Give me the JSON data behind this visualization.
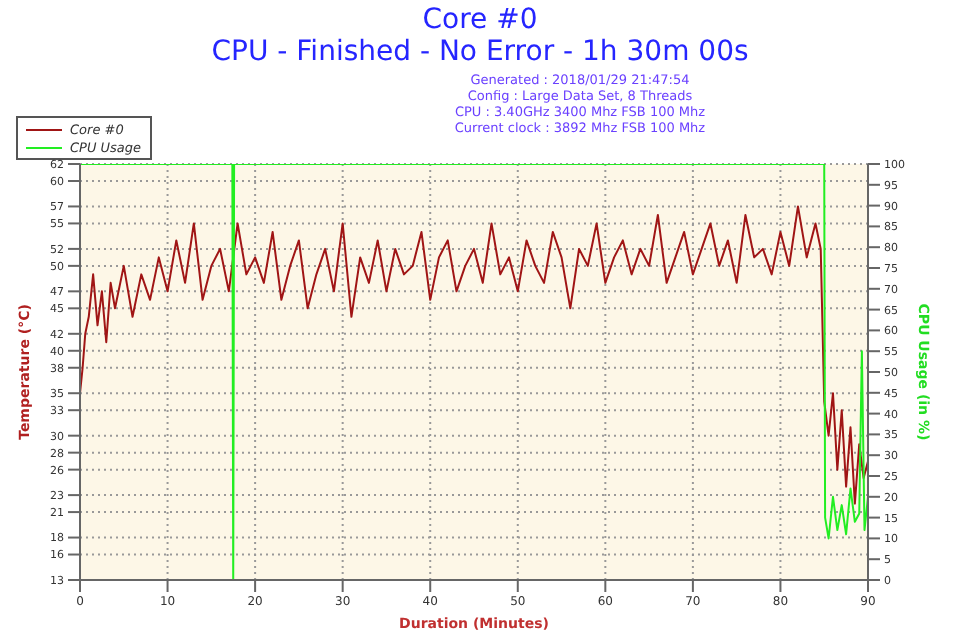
{
  "chart_data": {
    "type": "line",
    "title": "Core #0\nCPU - Finished - No Error - 1h 30m 00s",
    "subtitle": "Generated : 2018/01/29 21:47:54\nConfig : Large Data Set, 8 Threads\nCPU : 3.40GHz 3400 Mhz FSB 100 Mhz\nCurrent clock : 3892 Mhz FSB 100 Mhz",
    "xlabel": "Duration (Minutes)",
    "ylabel": "Temperature (°C)",
    "y2label": "CPU Usage (in %)",
    "legend": "top left",
    "grid": true,
    "marker": "none",
    "line_style": "solid",
    "xlim": [
      0,
      90
    ],
    "xticks": [
      0,
      10,
      20,
      30,
      40,
      50,
      60,
      70,
      80,
      90
    ],
    "ylim": [
      13,
      62
    ],
    "yticks": [
      13,
      16,
      18,
      21,
      23,
      26,
      28,
      30,
      33,
      35,
      38,
      40,
      42,
      45,
      47,
      50,
      52,
      55,
      57,
      60,
      62
    ],
    "y2lim": [
      0,
      100
    ],
    "y2ticks": [
      0,
      5,
      10,
      15,
      20,
      25,
      30,
      35,
      40,
      45,
      50,
      55,
      60,
      65,
      70,
      75,
      80,
      85,
      90,
      95,
      100
    ],
    "series": [
      {
        "name": "Core #0",
        "color": "#a01515",
        "x": [
          0,
          0.3,
          0.6,
          1,
          1.5,
          2,
          2.5,
          3,
          3.5,
          4,
          5,
          6,
          7,
          8,
          9,
          10,
          11,
          12,
          13,
          14,
          15,
          16,
          17,
          18,
          19,
          20,
          21,
          22,
          23,
          24,
          25,
          26,
          27,
          28,
          29,
          30,
          31,
          32,
          33,
          34,
          35,
          36,
          37,
          38,
          39,
          40,
          41,
          42,
          43,
          44,
          45,
          46,
          47,
          48,
          49,
          50,
          51,
          52,
          53,
          54,
          55,
          56,
          57,
          58,
          59,
          60,
          61,
          62,
          63,
          64,
          65,
          66,
          67,
          68,
          69,
          70,
          71,
          72,
          73,
          74,
          75,
          76,
          77,
          78,
          79,
          80,
          81,
          82,
          83,
          84,
          84.6,
          85,
          85.5,
          86,
          86.5,
          87,
          87.5,
          88,
          88.5,
          89,
          89.5,
          90
        ],
        "values": [
          35,
          38,
          42,
          44,
          49,
          43,
          47,
          41,
          48,
          45,
          50,
          44,
          49,
          46,
          51,
          47,
          53,
          48,
          55,
          46,
          50,
          52,
          47,
          55,
          49,
          51,
          48,
          54,
          46,
          50,
          53,
          45,
          49,
          52,
          47,
          55,
          44,
          51,
          48,
          53,
          47,
          52,
          49,
          50,
          54,
          46,
          51,
          53,
          47,
          50,
          52,
          48,
          55,
          49,
          51,
          47,
          53,
          50,
          48,
          54,
          51,
          45,
          52,
          50,
          55,
          48,
          51,
          53,
          49,
          52,
          50,
          56,
          48,
          51,
          54,
          49,
          52,
          55,
          50,
          53,
          48,
          56,
          51,
          52,
          49,
          54,
          50,
          57,
          51,
          55,
          52,
          34,
          30,
          35,
          26,
          33,
          24,
          31,
          22,
          29,
          25,
          27
        ]
      },
      {
        "name": "CPU Usage",
        "color": "#22ee22",
        "axis": "y2",
        "x": [
          0,
          17.4,
          17.5,
          17.6,
          85,
          85.1,
          85.5,
          86,
          86.5,
          87,
          87.5,
          88,
          88.5,
          89,
          89.3,
          89.6,
          90
        ],
        "values": [
          100,
          100,
          0,
          100,
          100,
          15,
          10,
          20,
          12,
          18,
          11,
          22,
          14,
          16,
          55,
          12,
          20
        ]
      }
    ]
  }
}
